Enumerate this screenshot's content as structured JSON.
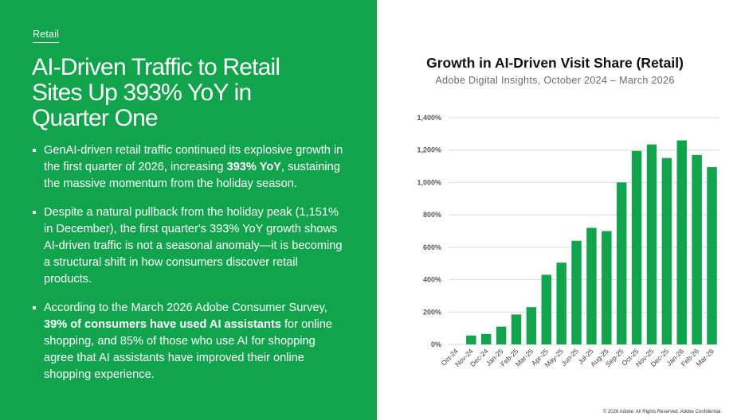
{
  "section_tag": "Retail",
  "headline": "AI-Driven Traffic to Retail Sites Up 393% YoY in Quarter One",
  "bullets": [
    [
      {
        "t": "GenAI-driven retail traffic continued its explosive growth in the first quarter of 2026, increasing "
      },
      {
        "t": "393% YoY",
        "b": true
      },
      {
        "t": ", sustaining the massive momentum from the holiday season."
      }
    ],
    [
      {
        "t": "Despite a natural pullback from the holiday peak (1,151% in December), the first quarter's 393% YoY growth shows AI-driven traffic is not a seasonal anomaly—it is becoming a structural shift in how consumers discover retail products."
      }
    ],
    [
      {
        "t": "According to the March 2026 Adobe Consumer Survey, "
      },
      {
        "t": "39% of consumers have used AI assistants",
        "b": true
      },
      {
        "t": " for online shopping, and 85% of those who use AI for shopping agree that AI assistants have improved their online shopping experience."
      }
    ]
  ],
  "footer": "© 2026 Adobe. All Rights Reserved. Adobe Confidential.",
  "colors": {
    "brand_green": "#12a44d",
    "bar_green": "#12a44d",
    "grid": "#d9d9d9"
  },
  "chart_data": {
    "type": "bar",
    "title": "Growth in AI-Driven Visit Share (Retail)",
    "subtitle": "Adobe Digital Insights, October 2024 – March 2026",
    "categories": [
      "Oct-24",
      "Nov-24",
      "Dec-24",
      "Jan-25",
      "Feb-25",
      "Mar-25",
      "Apr-25",
      "May-25",
      "Jun-25",
      "Jul-25",
      "Aug-25",
      "Sep-25",
      "Oct-25",
      "Nov-25",
      "Dec-25",
      "Jan-26",
      "Feb-26",
      "Mar-26"
    ],
    "values": [
      0,
      55,
      65,
      110,
      185,
      230,
      430,
      505,
      640,
      720,
      700,
      1000,
      1195,
      1235,
      1151,
      1260,
      1170,
      1095
    ],
    "ylim": [
      0,
      1400
    ],
    "yticks": [
      0,
      200,
      400,
      600,
      800,
      1000,
      1200,
      1400
    ],
    "ytick_labels": [
      "0%",
      "200%",
      "400%",
      "600%",
      "800%",
      "1,000%",
      "1,200%",
      "1,400%"
    ],
    "xlabel": "",
    "ylabel": "",
    "grid": true,
    "legend": "none"
  }
}
